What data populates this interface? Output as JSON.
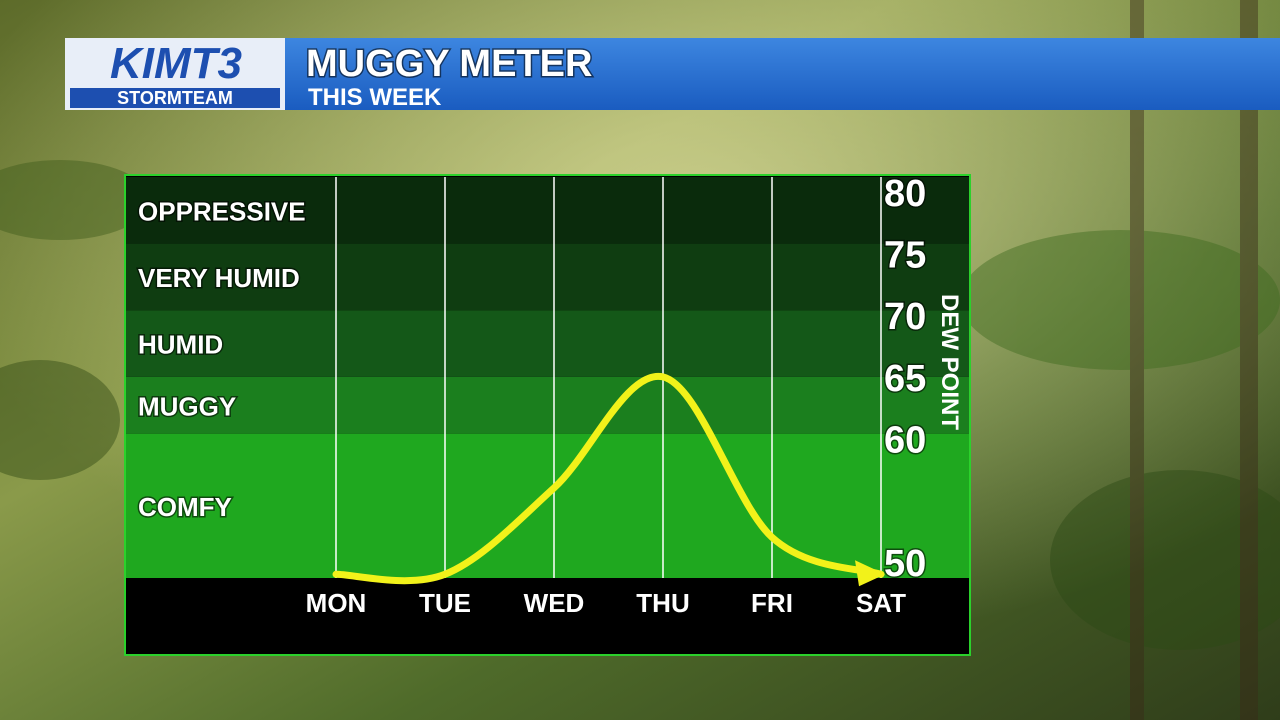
{
  "header": {
    "logo": "KIMT3",
    "logo_sub": "STORMTEAM",
    "title": "MUGGY METER",
    "subtitle": "THIS WEEK"
  },
  "chart_data": {
    "type": "line",
    "y_label": "DEW POINT",
    "categories": [
      "MON",
      "TUE",
      "WED",
      "THU",
      "FRI",
      "SAT"
    ],
    "values": [
      49,
      49,
      56,
      65,
      52,
      49
    ],
    "color": "#f2f21a",
    "ylim": [
      48.7,
      81.2
    ],
    "yticks": [
      50,
      60,
      65,
      70,
      75,
      80
    ],
    "bands": [
      {
        "label": "COMFY",
        "from": 48.7,
        "to": 60.4,
        "color": "#1fa81f"
      },
      {
        "label": "MUGGY",
        "from": 60.4,
        "to": 65,
        "color": "#1b7f1e"
      },
      {
        "label": "HUMID",
        "from": 65,
        "to": 70.4,
        "color": "#145818"
      },
      {
        "label": "VERY HUMID",
        "from": 70.4,
        "to": 75.8,
        "color": "#0f3d11"
      },
      {
        "label": "OPPRESSIVE",
        "from": 75.8,
        "to": 81.2,
        "color": "#0a2b0c"
      }
    ],
    "grid": true
  }
}
